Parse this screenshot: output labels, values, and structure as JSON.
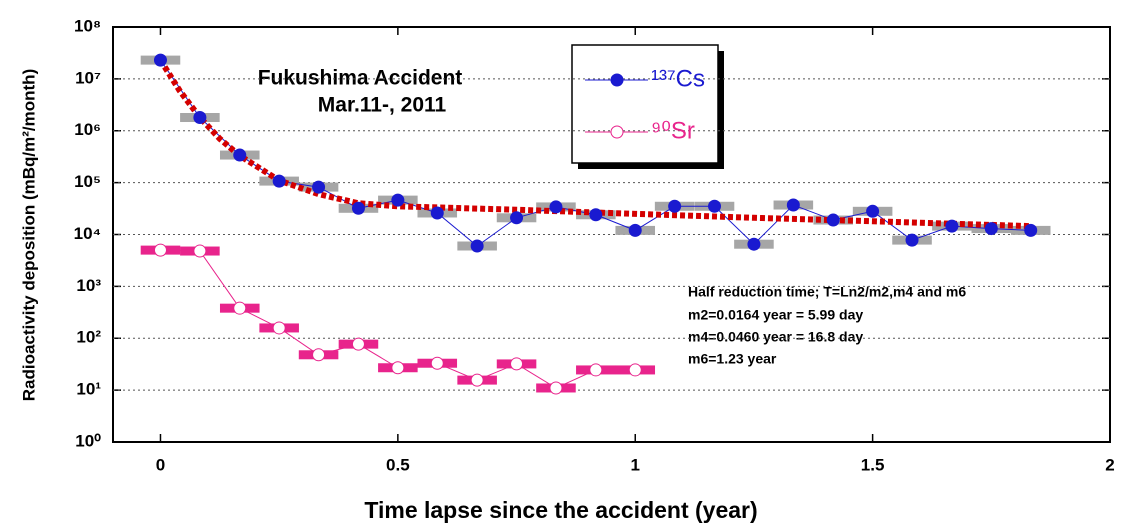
{
  "chart_data": {
    "type": "scatter",
    "title_lines": [
      "Fukushima Accident",
      "Mar.11-, 2011"
    ],
    "x_label": "Time lapse since the accident (year)",
    "y_label": "Radioactivity deposition (mBq/m²/month)",
    "annotations": [
      "Half reduction time; T=Ln2/m2,m4 and m6",
      "m2=0.0164 year = 5.99 day",
      "m4=0.0460 year = 16.8 day",
      "m6=1.23 year"
    ],
    "xlim": [
      -0.1,
      2
    ],
    "xticks": [
      0,
      0.5,
      1,
      1.5,
      2
    ],
    "ylim": [
      1,
      100000000
    ],
    "log_y": true,
    "grid": true,
    "yticks": [
      {
        "value": 1,
        "label": "10⁰"
      },
      {
        "value": 10,
        "label": "10¹"
      },
      {
        "value": 100,
        "label": "10²"
      },
      {
        "value": 1000,
        "label": "10³"
      },
      {
        "value": 10000,
        "label": "10⁴"
      },
      {
        "value": 100000,
        "label": "10⁵"
      },
      {
        "value": 1000000,
        "label": "10⁶"
      },
      {
        "value": 10000000,
        "label": "10⁷"
      },
      {
        "value": 100000000,
        "label": "10⁸"
      }
    ],
    "series": [
      {
        "name": "¹³⁷Cs",
        "color": "#1a1ad0",
        "bar_color": "#a6a6a6",
        "filled": true,
        "x": [
          0,
          0.083,
          0.167,
          0.25,
          0.333,
          0.417,
          0.5,
          0.583,
          0.667,
          0.75,
          0.833,
          0.917,
          1.0,
          1.083,
          1.167,
          1.25,
          1.333,
          1.417,
          1.5,
          1.583,
          1.667,
          1.75,
          1.833
        ],
        "values": [
          23000000,
          1800000,
          340000,
          107000,
          82000,
          32000,
          46000,
          26000,
          6000,
          21000,
          34000,
          24000,
          12000,
          35000,
          35000,
          6500,
          37000,
          19000,
          28000,
          7800,
          14500,
          13000,
          12000
        ]
      },
      {
        "name": "⁹⁰Sr",
        "color": "#e8248c",
        "bar_color": "#e8248c",
        "filled": false,
        "x": [
          0,
          0.083,
          0.167,
          0.25,
          0.333,
          0.417,
          0.5,
          0.583,
          0.667,
          0.75,
          0.833,
          0.917,
          1.0
        ],
        "values": [
          5000,
          4800,
          380,
          158,
          48,
          77,
          27,
          33,
          15.6,
          32,
          11,
          24.5,
          24.5
        ]
      }
    ],
    "fit": {
      "color": "#d40000",
      "x": [
        0,
        0.04,
        0.083,
        0.125,
        0.167,
        0.25,
        0.333,
        0.417,
        0.5,
        0.75,
        1.0,
        1.25,
        1.5,
        1.833
      ],
      "values": [
        23000000,
        6000000,
        1800000,
        700000,
        330000,
        110000,
        60000,
        40000,
        35000,
        30000,
        25000,
        21000,
        18000,
        14500
      ]
    }
  }
}
